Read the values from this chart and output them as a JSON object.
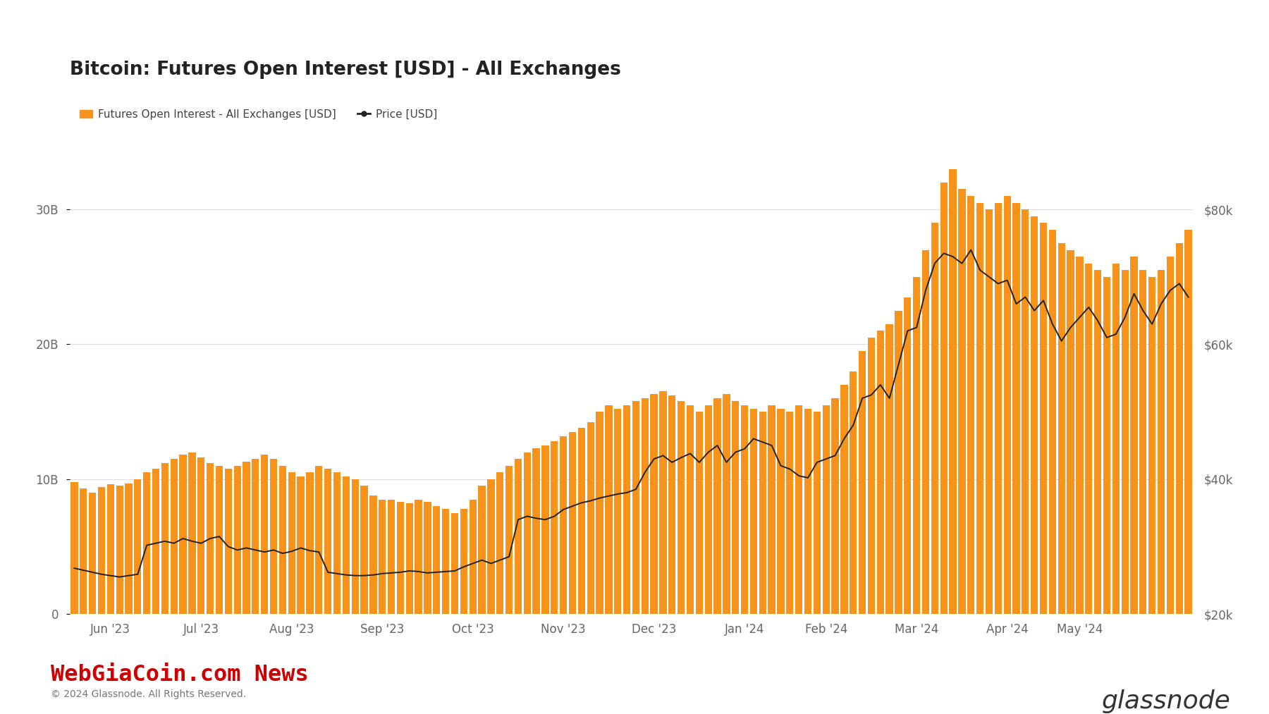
{
  "title": "Bitcoin: Futures Open Interest [USD] - All Exchanges",
  "legend_items": [
    {
      "label": "Futures Open Interest - All Exchanges [USD]",
      "color": "#f7931a",
      "type": "bar"
    },
    {
      "label": "Price [USD]",
      "color": "#1a1a1a",
      "type": "line"
    }
  ],
  "bar_color": "#f7931a",
  "line_color": "#222222",
  "background_color": "#ffffff",
  "grid_color": "#dddddd",
  "left_ylim": [
    0,
    36000000000.0
  ],
  "right_ylim": [
    20000,
    92000
  ],
  "left_yticks": [
    0,
    10000000000.0,
    20000000000.0,
    30000000000.0
  ],
  "left_yticklabels": [
    "0",
    "10B",
    "20B",
    "30B"
  ],
  "right_yticks": [
    20000,
    40000,
    60000,
    80000
  ],
  "right_yticklabels": [
    "$20k",
    "$40k",
    "$60k",
    "$80k"
  ],
  "title_fontsize": 19,
  "tick_fontsize": 12,
  "legend_fontsize": 11,
  "watermark_text": "WebGiaCoin.com News",
  "watermark_color": "#cc0000",
  "copyright_text": "© 2024 Glassnode. All Rights Reserved.",
  "branding_text": "glassnode",
  "open_interest": [
    9800000000.0,
    9300000000.0,
    9000000000.0,
    9400000000.0,
    9600000000.0,
    9500000000.0,
    9700000000.0,
    10000000000.0,
    10500000000.0,
    10800000000.0,
    11200000000.0,
    11500000000.0,
    11800000000.0,
    12000000000.0,
    11600000000.0,
    11200000000.0,
    11000000000.0,
    10800000000.0,
    11000000000.0,
    11300000000.0,
    11500000000.0,
    11800000000.0,
    11500000000.0,
    11000000000.0,
    10500000000.0,
    10200000000.0,
    10500000000.0,
    11000000000.0,
    10800000000.0,
    10500000000.0,
    10200000000.0,
    10000000000.0,
    9500000000.0,
    8800000000.0,
    8500000000.0,
    8500000000.0,
    8300000000.0,
    8200000000.0,
    8500000000.0,
    8300000000.0,
    8000000000.0,
    7800000000.0,
    7500000000.0,
    7800000000.0,
    8500000000.0,
    9500000000.0,
    10000000000.0,
    10500000000.0,
    11000000000.0,
    11500000000.0,
    12000000000.0,
    12300000000.0,
    12500000000.0,
    12800000000.0,
    13200000000.0,
    13500000000.0,
    13800000000.0,
    14200000000.0,
    15000000000.0,
    15500000000.0,
    15200000000.0,
    15500000000.0,
    15800000000.0,
    16000000000.0,
    16300000000.0,
    16500000000.0,
    16200000000.0,
    15800000000.0,
    15500000000.0,
    15000000000.0,
    15500000000.0,
    16000000000.0,
    16300000000.0,
    15800000000.0,
    15500000000.0,
    15200000000.0,
    15000000000.0,
    15500000000.0,
    15200000000.0,
    15000000000.0,
    15500000000.0,
    15200000000.0,
    15000000000.0,
    15500000000.0,
    16000000000.0,
    17000000000.0,
    18000000000.0,
    19500000000.0,
    20500000000.0,
    21000000000.0,
    21500000000.0,
    22500000000.0,
    23500000000.0,
    25000000000.0,
    27000000000.0,
    29000000000.0,
    32000000000.0,
    33000000000.0,
    31500000000.0,
    31000000000.0,
    30500000000.0,
    30000000000.0,
    30500000000.0,
    31000000000.0,
    30500000000.0,
    30000000000.0,
    29500000000.0,
    29000000000.0,
    28500000000.0,
    27500000000.0,
    27000000000.0,
    26500000000.0,
    26000000000.0,
    25500000000.0,
    25000000000.0,
    26000000000.0,
    25500000000.0,
    26500000000.0,
    25500000000.0,
    25000000000.0,
    25500000000.0,
    26500000000.0,
    27500000000.0,
    28500000000.0
  ],
  "price": [
    26800,
    26500,
    26200,
    25900,
    25700,
    25500,
    25700,
    25900,
    30200,
    30500,
    30800,
    30500,
    31200,
    30800,
    30500,
    31200,
    31500,
    30000,
    29500,
    29800,
    29500,
    29200,
    29500,
    29000,
    29300,
    29800,
    29400,
    29200,
    26200,
    26000,
    25800,
    25700,
    25700,
    25800,
    26000,
    26100,
    26200,
    26400,
    26300,
    26100,
    26200,
    26300,
    26400,
    27000,
    27500,
    28000,
    27500,
    28000,
    28500,
    34000,
    34500,
    34200,
    34000,
    34500,
    35500,
    36000,
    36500,
    36800,
    37200,
    37500,
    37800,
    38000,
    38500,
    41000,
    43000,
    43500,
    42500,
    43200,
    43800,
    42500,
    44000,
    45000,
    42500,
    44000,
    44500,
    46000,
    45500,
    45000,
    42000,
    41500,
    40500,
    40200,
    42500,
    43000,
    43500,
    46000,
    48000,
    52000,
    52500,
    54000,
    52000,
    57000,
    62000,
    62500,
    68000,
    72000,
    73500,
    73000,
    72000,
    74000,
    71000,
    70000,
    69000,
    69500,
    66000,
    67000,
    65000,
    66500,
    63000,
    60500,
    62500,
    64000,
    65500,
    63500,
    61000,
    61500,
    64000,
    67500,
    65000,
    63000,
    66000,
    68000,
    69000,
    67000
  ],
  "xtick_labels": [
    "Jun '23",
    "Jul '23",
    "Aug '23",
    "Sep '23",
    "Oct '23",
    "Nov '23",
    "Dec '23",
    "Jan '24",
    "Feb '24",
    "Mar '24",
    "Apr '24",
    "May '24"
  ],
  "xtick_positions": [
    4,
    14,
    24,
    34,
    44,
    54,
    64,
    74,
    83,
    93,
    103,
    111
  ]
}
